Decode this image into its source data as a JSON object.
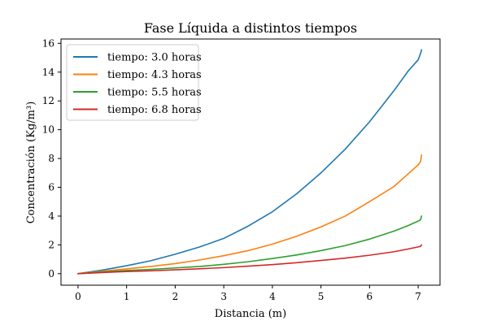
{
  "chart_data": {
    "type": "line",
    "title": "Fase Líquida a distintos tiempos",
    "xlabel": "Distancia (m)",
    "ylabel": "Concentración (Kg/m³)",
    "xlim": [
      -0.35,
      7.45
    ],
    "ylim": [
      -0.8,
      16.3
    ],
    "xticks": [
      0,
      1,
      2,
      3,
      4,
      5,
      6,
      7
    ],
    "yticks": [
      0,
      2,
      4,
      6,
      8,
      10,
      12,
      14,
      16
    ],
    "grid": false,
    "legend_position": "upper-left",
    "x": [
      0,
      0.5,
      1,
      1.5,
      2,
      2.5,
      3,
      3.5,
      4,
      4.5,
      5,
      5.5,
      6,
      6.5,
      6.8,
      7.0,
      7.05
    ],
    "series": [
      {
        "name": "tiempo: 3.0 horas",
        "color": "#1f77b4",
        "values": [
          0,
          0.25,
          0.55,
          0.9,
          1.35,
          1.85,
          2.45,
          3.3,
          4.3,
          5.55,
          7.0,
          8.65,
          10.55,
          12.7,
          14.1,
          14.85,
          15.3
        ],
        "end_x": 7.07,
        "end_value": 15.55
      },
      {
        "name": "tiempo: 4.3 horas",
        "color": "#ff7f0e",
        "values": [
          0,
          0.17,
          0.33,
          0.5,
          0.7,
          0.95,
          1.25,
          1.6,
          2.05,
          2.6,
          3.25,
          4.0,
          5.0,
          6.05,
          6.95,
          7.55,
          7.8
        ],
        "end_x": 7.07,
        "end_value": 8.25
      },
      {
        "name": "tiempo: 5.5 horas",
        "color": "#2ca02c",
        "values": [
          0,
          0.12,
          0.22,
          0.3,
          0.4,
          0.5,
          0.65,
          0.83,
          1.05,
          1.3,
          1.6,
          1.95,
          2.4,
          2.95,
          3.35,
          3.65,
          3.75
        ],
        "end_x": 7.07,
        "end_value": 4.0
      },
      {
        "name": "tiempo: 6.8 horas",
        "color": "#d62728",
        "values": [
          0,
          0.08,
          0.15,
          0.2,
          0.27,
          0.34,
          0.42,
          0.52,
          0.63,
          0.76,
          0.92,
          1.08,
          1.28,
          1.52,
          1.72,
          1.86,
          1.9
        ],
        "end_x": 7.07,
        "end_value": 2.0
      }
    ]
  }
}
